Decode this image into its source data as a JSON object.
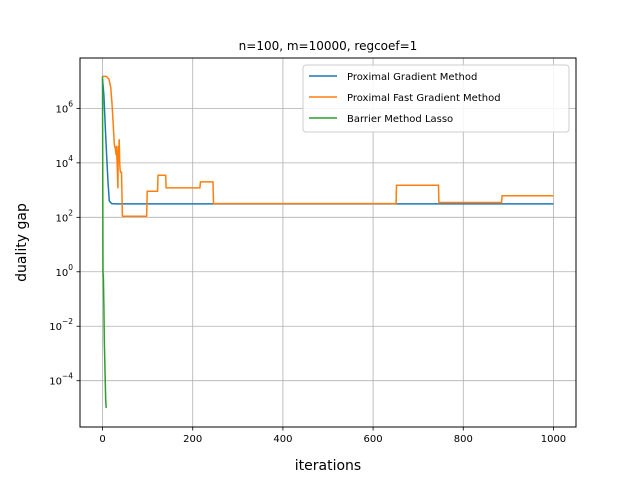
{
  "chart_data": {
    "type": "line",
    "title": "n=100, m=10000, regcoef=1",
    "xlabel": "iterations",
    "ylabel": "duality gap",
    "xlim": [
      -50,
      1050
    ],
    "ylim_log10": [
      -5.7,
      7.85
    ],
    "yscale": "log",
    "grid": true,
    "legend_position": "top-right",
    "x_ticks": [
      0,
      200,
      400,
      600,
      800,
      1000
    ],
    "x_tick_labels": [
      "0",
      "200",
      "400",
      "600",
      "800",
      "1000"
    ],
    "y_ticks_log10": [
      -4,
      -2,
      0,
      2,
      4,
      6
    ],
    "y_tick_labels": [
      {
        "base": "10",
        "exp": "−4"
      },
      {
        "base": "10",
        "exp": "−2"
      },
      {
        "base": "10",
        "exp": "0"
      },
      {
        "base": "10",
        "exp": "2"
      },
      {
        "base": "10",
        "exp": "4"
      },
      {
        "base": "10",
        "exp": "6"
      }
    ],
    "series": [
      {
        "name": "Proximal Gradient Method",
        "color": "#1f77b4",
        "x": [
          0,
          3,
          6,
          9,
          12,
          15,
          20,
          30,
          60,
          200,
          500,
          800,
          1000
        ],
        "y": [
          12000000,
          3000000,
          200000,
          20000,
          2000,
          400,
          320,
          310,
          310,
          310,
          310,
          310,
          310
        ]
      },
      {
        "name": "Proximal Fast Gradient Method",
        "color": "#ff7f0e",
        "x": [
          0,
          8,
          14,
          18,
          21,
          24,
          26,
          27,
          28,
          30,
          31,
          33,
          34,
          35,
          36,
          37,
          38,
          39,
          40,
          42,
          44,
          46,
          47,
          98,
          99,
          122,
          123,
          140,
          141,
          216,
          217,
          245,
          246,
          651,
          652,
          745,
          746,
          885,
          886,
          1000
        ],
        "y": [
          15000000,
          15000000,
          12000000,
          6000000,
          1500000,
          200000,
          50000,
          38000,
          38000,
          20000,
          40000,
          5000,
          1200,
          40000,
          20000,
          70000,
          10000,
          5500,
          4500,
          4500,
          110,
          110,
          110,
          110,
          900,
          900,
          3500,
          3500,
          1200,
          1200,
          2000,
          2000,
          320,
          320,
          1500,
          1500,
          350,
          350,
          620,
          620
        ]
      },
      {
        "name": "Barrier Method Lasso",
        "color": "#2ca02c",
        "x": [
          0,
          1,
          2,
          3,
          4,
          5,
          6,
          7,
          8
        ],
        "y": [
          15000000,
          1,
          0.6,
          0.05,
          0.003,
          0.0005,
          8e-05,
          2e-05,
          1e-05
        ]
      }
    ]
  }
}
